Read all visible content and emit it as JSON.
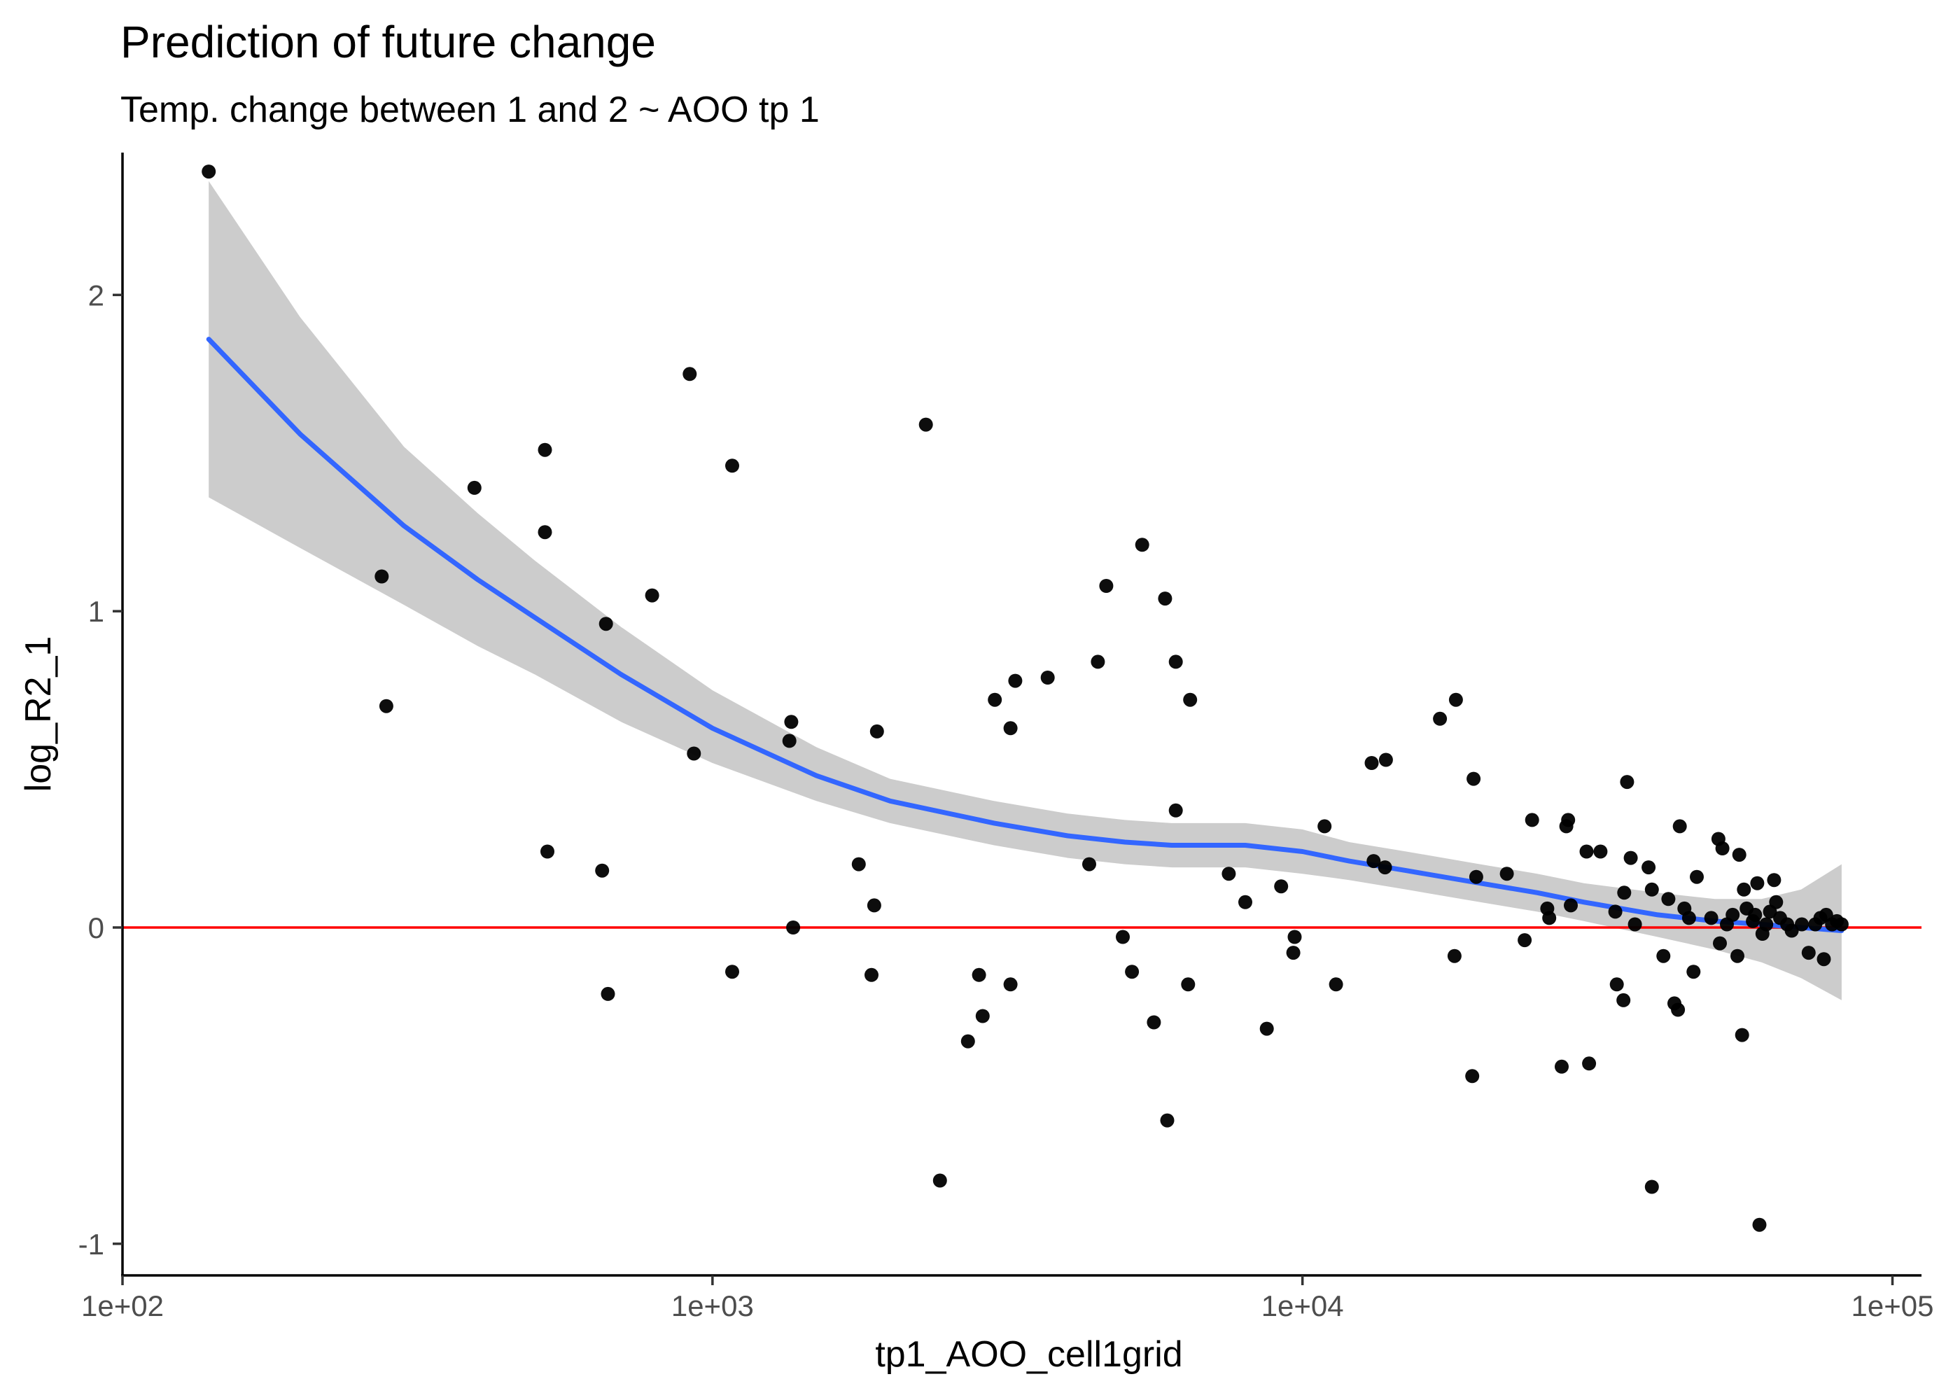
{
  "chart_data": {
    "type": "scatter",
    "title": "Prediction of future change",
    "subtitle": "Temp. change between 1 and 2 ~ AOO tp 1",
    "xlabel": "tp1_AOO_cell1grid",
    "ylabel": "log_R2_1",
    "x_scale": "log10",
    "xlim": [
      100,
      112000
    ],
    "ylim": [
      -1.1,
      2.45
    ],
    "x_ticks": [
      100,
      1000,
      10000,
      100000
    ],
    "x_tick_labels": [
      "1e+02",
      "1e+03",
      "1e+04",
      "1e+05"
    ],
    "y_ticks": [
      -1,
      0,
      1,
      2
    ],
    "y_tick_labels": [
      "-1",
      "0",
      "1",
      "2"
    ],
    "grid": false,
    "colors": {
      "points": "#000000",
      "smooth": "#3366FF",
      "band": "#cccccc",
      "reference": "#FF0000"
    },
    "reference_line": {
      "y": 0
    },
    "points": [
      [
        140,
        2.39
      ],
      [
        275,
        1.11
      ],
      [
        280,
        0.7
      ],
      [
        395,
        1.39
      ],
      [
        520,
        1.51
      ],
      [
        520,
        1.25
      ],
      [
        525,
        0.24
      ],
      [
        650,
        0.18
      ],
      [
        660,
        0.96
      ],
      [
        665,
        -0.21
      ],
      [
        790,
        1.05
      ],
      [
        915,
        1.75
      ],
      [
        930,
        0.55
      ],
      [
        1080,
        1.46
      ],
      [
        1080,
        -0.14
      ],
      [
        1360,
        0.65
      ],
      [
        1350,
        0.59
      ],
      [
        1370,
        0.0
      ],
      [
        1770,
        0.2
      ],
      [
        1860,
        -0.15
      ],
      [
        1880,
        0.07
      ],
      [
        1900,
        0.62
      ],
      [
        2300,
        1.59
      ],
      [
        2430,
        -0.8
      ],
      [
        2710,
        -0.36
      ],
      [
        2830,
        -0.15
      ],
      [
        2870,
        -0.28
      ],
      [
        3010,
        0.72
      ],
      [
        3200,
        0.63
      ],
      [
        3260,
        0.78
      ],
      [
        3200,
        -0.18
      ],
      [
        3700,
        0.79
      ],
      [
        4350,
        0.2
      ],
      [
        4500,
        0.84
      ],
      [
        4650,
        1.08
      ],
      [
        4960,
        -0.03
      ],
      [
        5140,
        -0.14
      ],
      [
        5350,
        1.21
      ],
      [
        5600,
        -0.3
      ],
      [
        5850,
        1.04
      ],
      [
        5900,
        -0.61
      ],
      [
        6100,
        0.84
      ],
      [
        6100,
        0.37
      ],
      [
        6400,
        -0.18
      ],
      [
        6450,
        0.72
      ],
      [
        7500,
        0.17
      ],
      [
        8000,
        0.08
      ],
      [
        8700,
        -0.32
      ],
      [
        9200,
        0.13
      ],
      [
        9700,
        -0.03
      ],
      [
        9650,
        -0.08
      ],
      [
        10900,
        0.32
      ],
      [
        11400,
        -0.18
      ],
      [
        13100,
        0.52
      ],
      [
        13200,
        0.21
      ],
      [
        13850,
        0.53
      ],
      [
        13800,
        0.19
      ],
      [
        17100,
        0.66
      ],
      [
        18200,
        0.72
      ],
      [
        18100,
        -0.09
      ],
      [
        19500,
        0.47
      ],
      [
        19700,
        0.16
      ],
      [
        19400,
        -0.47
      ],
      [
        22200,
        0.17
      ],
      [
        23800,
        -0.04
      ],
      [
        24500,
        0.34
      ],
      [
        26000,
        0.06
      ],
      [
        26200,
        0.03
      ],
      [
        27500,
        -0.44
      ],
      [
        28200,
        0.34
      ],
      [
        28000,
        0.32
      ],
      [
        28500,
        0.07
      ],
      [
        30300,
        0.24
      ],
      [
        30600,
        -0.43
      ],
      [
        32000,
        0.24
      ],
      [
        33900,
        0.05
      ],
      [
        34100,
        -0.18
      ],
      [
        35000,
        -0.23
      ],
      [
        35100,
        0.11
      ],
      [
        35500,
        0.46
      ],
      [
        36000,
        0.22
      ],
      [
        36600,
        0.01
      ],
      [
        38600,
        0.19
      ],
      [
        39100,
        -0.82
      ],
      [
        39100,
        0.12
      ],
      [
        40900,
        -0.09
      ],
      [
        41700,
        0.09
      ],
      [
        42700,
        -0.24
      ],
      [
        43300,
        -0.26
      ],
      [
        43600,
        0.32
      ],
      [
        44400,
        0.06
      ],
      [
        45200,
        0.03
      ],
      [
        46000,
        -0.14
      ],
      [
        46600,
        0.16
      ],
      [
        49300,
        0.03
      ],
      [
        50700,
        0.28
      ],
      [
        51000,
        -0.05
      ],
      [
        51500,
        0.25
      ],
      [
        52400,
        0.01
      ],
      [
        53600,
        0.04
      ],
      [
        54600,
        -0.09
      ],
      [
        55000,
        0.23
      ],
      [
        55600,
        -0.34
      ],
      [
        56000,
        0.12
      ],
      [
        56600,
        0.06
      ],
      [
        58000,
        0.02
      ],
      [
        58500,
        0.04
      ],
      [
        59000,
        0.14
      ],
      [
        59500,
        -0.94
      ],
      [
        60200,
        -0.02
      ],
      [
        61100,
        0.01
      ],
      [
        62000,
        0.05
      ],
      [
        63000,
        0.15
      ],
      [
        63500,
        0.08
      ],
      [
        64500,
        0.03
      ],
      [
        66300,
        0.01
      ],
      [
        67500,
        -0.01
      ],
      [
        70200,
        0.01
      ],
      [
        72100,
        -0.08
      ],
      [
        74000,
        0.01
      ],
      [
        75500,
        0.03
      ],
      [
        76500,
        -0.1
      ],
      [
        77200,
        0.04
      ],
      [
        79000,
        0.01
      ],
      [
        80500,
        0.02
      ],
      [
        82000,
        0.01
      ]
    ],
    "smooth": {
      "x": [
        140,
        200,
        300,
        400,
        500,
        700,
        1000,
        1500,
        2000,
        3000,
        4000,
        5000,
        6000,
        7000,
        8000,
        10000,
        12000,
        15000,
        20000,
        25000,
        30000,
        40000,
        50000,
        60000,
        70000,
        82000
      ],
      "y": [
        1.86,
        1.56,
        1.27,
        1.1,
        0.98,
        0.8,
        0.63,
        0.48,
        0.4,
        0.33,
        0.29,
        0.27,
        0.26,
        0.26,
        0.26,
        0.24,
        0.21,
        0.18,
        0.14,
        0.11,
        0.08,
        0.04,
        0.02,
        0.01,
        0.0,
        -0.01
      ],
      "lower": [
        1.36,
        1.2,
        1.02,
        0.89,
        0.8,
        0.65,
        0.52,
        0.4,
        0.33,
        0.26,
        0.22,
        0.2,
        0.19,
        0.19,
        0.19,
        0.17,
        0.15,
        0.12,
        0.08,
        0.05,
        0.02,
        -0.03,
        -0.07,
        -0.11,
        -0.16,
        -0.23
      ],
      "upper": [
        2.36,
        1.93,
        1.52,
        1.31,
        1.16,
        0.95,
        0.75,
        0.57,
        0.47,
        0.4,
        0.36,
        0.34,
        0.33,
        0.33,
        0.33,
        0.31,
        0.27,
        0.24,
        0.2,
        0.17,
        0.14,
        0.11,
        0.09,
        0.09,
        0.12,
        0.2
      ]
    }
  }
}
